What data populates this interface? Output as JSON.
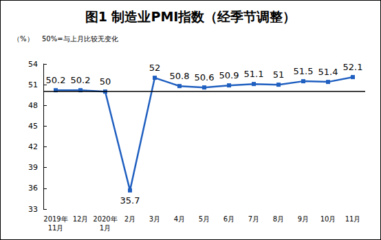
{
  "chart_data": {
    "type": "line",
    "title": "图1 制造业PMI指数（经季节调整）",
    "ylabel": "（%）",
    "annotations": [
      {
        "text": "50%=与上月比较无变化",
        "y": 50
      }
    ],
    "categories": [
      "2019年\n11月",
      "12月",
      "2020年\n1月",
      "2月",
      "3月",
      "4月",
      "5月",
      "6月",
      "7月",
      "8月",
      "9月",
      "10月",
      "11月"
    ],
    "values": [
      50.2,
      50.2,
      50.0,
      35.7,
      52.0,
      50.8,
      50.6,
      50.9,
      51.1,
      51.0,
      51.5,
      51.4,
      52.1
    ],
    "color": "#1f5fc0",
    "marker": "square",
    "ylim": [
      33,
      54
    ],
    "yticks": [
      33,
      36,
      39,
      42,
      45,
      48,
      51,
      54
    ],
    "grid": false,
    "data_labels": true
  }
}
